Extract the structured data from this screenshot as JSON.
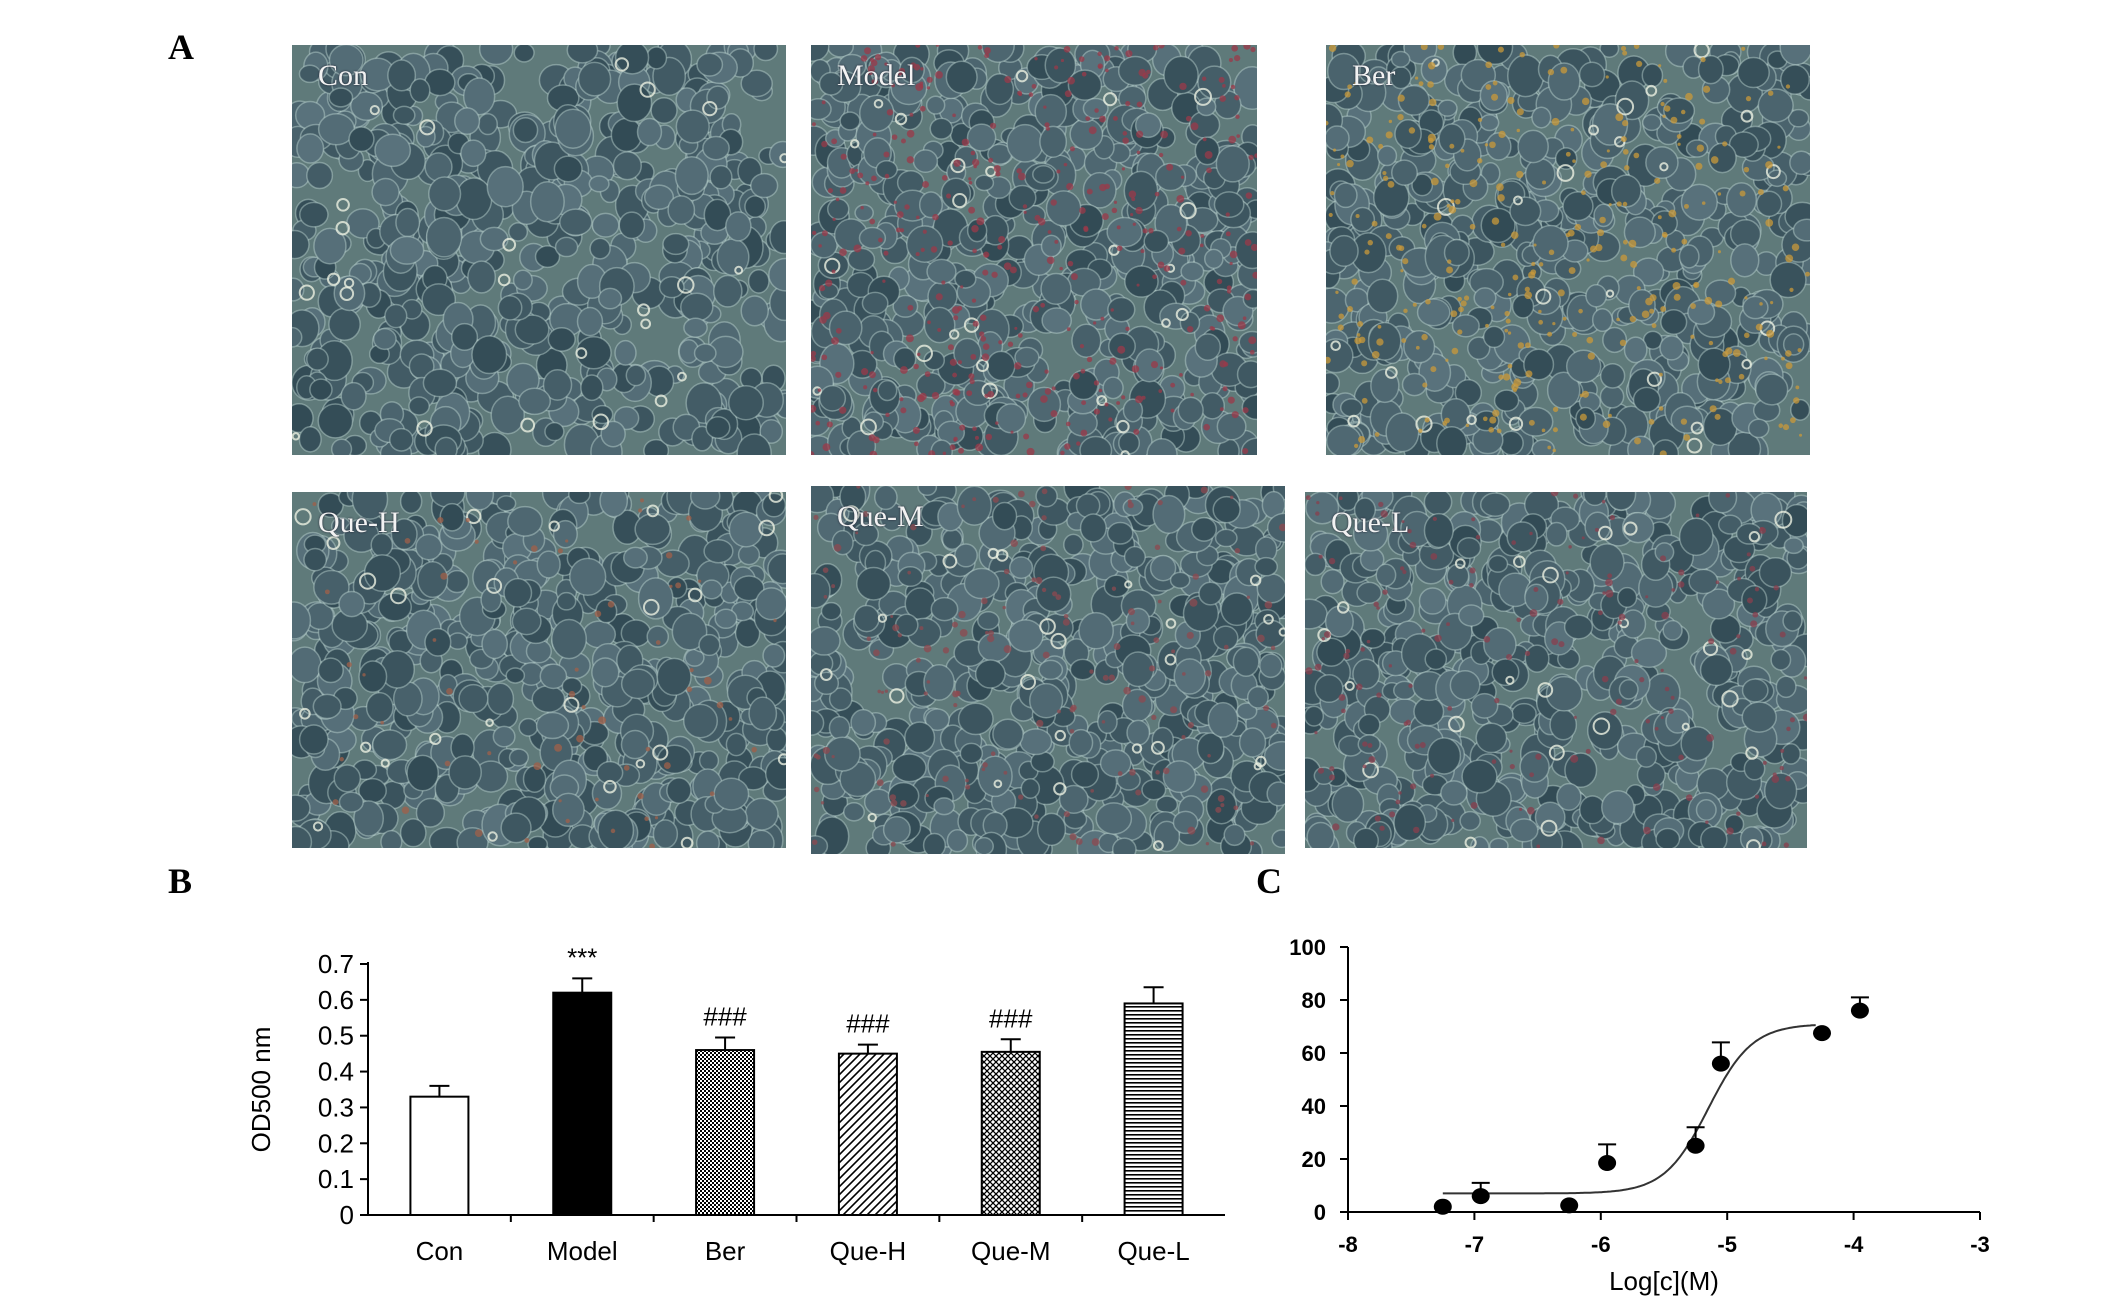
{
  "figure": {
    "panels": [
      "A",
      "B",
      "C"
    ]
  },
  "micrographs": [
    {
      "label": "Con",
      "stain": "none"
    },
    {
      "label": "Model",
      "stain": "heavy-red"
    },
    {
      "label": "Ber",
      "stain": "orange"
    },
    {
      "label": "Que-H",
      "stain": "light"
    },
    {
      "label": "Que-M",
      "stain": "medium"
    },
    {
      "label": "Que-L",
      "stain": "medium-red"
    }
  ],
  "chart_data": [
    {
      "type": "bar",
      "panel": "B",
      "categories": [
        "Con",
        "Model",
        "Ber",
        "Que-H",
        "Que-M",
        "Que-L"
      ],
      "values": [
        0.33,
        0.62,
        0.46,
        0.45,
        0.455,
        0.59
      ],
      "errors": [
        0.03,
        0.04,
        0.035,
        0.025,
        0.035,
        0.045
      ],
      "annotations": [
        "",
        "***",
        "###",
        "###",
        "###",
        ""
      ],
      "patterns": [
        "white",
        "black",
        "dots",
        "diagonal",
        "crosshatch",
        "horizontal"
      ],
      "ylabel": "OD500 nm",
      "yticks": [
        "0",
        "0.1",
        "0.2",
        "0.3",
        "0.4",
        "0.5",
        "0.6",
        "0.7"
      ],
      "ylim": [
        0,
        0.7
      ]
    },
    {
      "type": "scatter",
      "panel": "C",
      "x": [
        -7.25,
        -6.95,
        -6.25,
        -5.95,
        -5.25,
        -5.05,
        -4.25,
        -3.95
      ],
      "y": [
        2,
        6,
        2.5,
        18.5,
        25,
        56,
        67.5,
        76
      ],
      "errors": [
        0,
        5,
        0,
        7,
        7,
        8,
        0,
        5
      ],
      "fit_curve": {
        "bottom": 7,
        "top": 71,
        "log_ec50": -5.15,
        "hill": 2.5,
        "x_range": [
          -7.25,
          -4.3
        ]
      },
      "xlabel": "Log[c](M)",
      "xticks": [
        "-8",
        "-7",
        "-6",
        "-5",
        "-4",
        "-3"
      ],
      "yticks": [
        "0",
        "20",
        "40",
        "60",
        "80",
        "100"
      ],
      "xlim": [
        -8,
        -3
      ],
      "ylim": [
        0,
        100
      ]
    }
  ]
}
